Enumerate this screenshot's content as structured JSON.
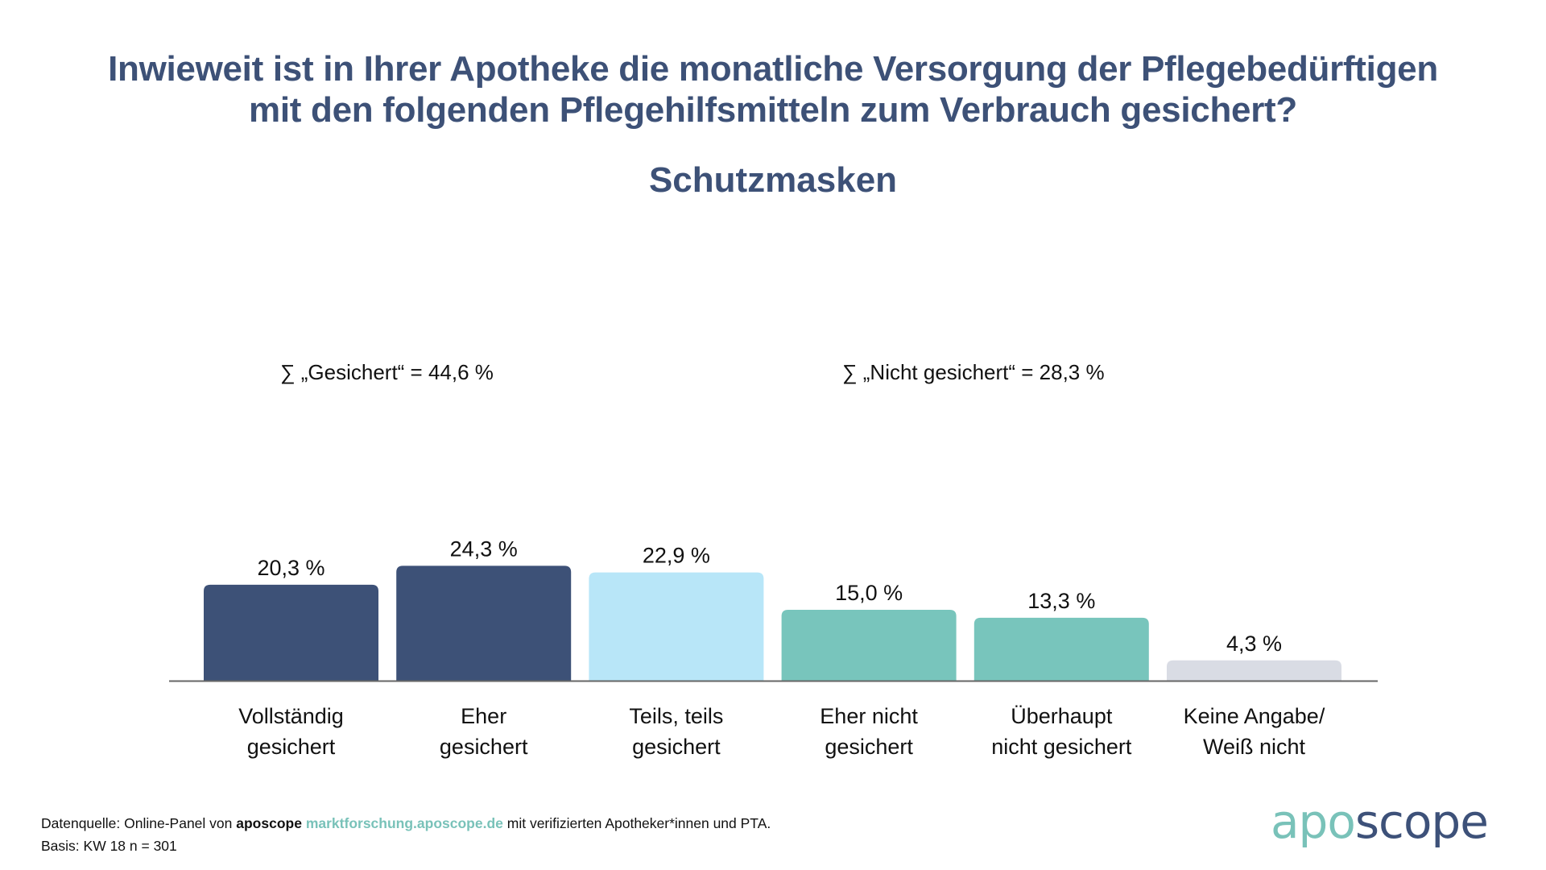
{
  "title": {
    "line1": "Inwieweit ist in Ihrer Apotheke die monatliche Versorgung der Pflegebedürftigen",
    "line2": "mit den folgenden Pflegehilfsmitteln zum Verbrauch gesichert?"
  },
  "subtitle": "Schutzmasken",
  "sums": [
    {
      "label": "∑ „Gesichert“ = 44,6 %"
    },
    {
      "label": "∑ „Nicht gesichert“ = 28,3 %"
    }
  ],
  "chart_data": {
    "type": "bar",
    "title": "Inwieweit ist in Ihrer Apotheke die monatliche Versorgung der Pflegebedürftigen mit den folgenden Pflegehilfsmitteln zum Verbrauch gesichert? – Schutzmasken",
    "xlabel": "",
    "ylabel": "",
    "unit": "%",
    "categories": [
      [
        "Vollständig",
        "gesichert"
      ],
      [
        "Eher",
        "gesichert"
      ],
      [
        "Teils, teils",
        "gesichert"
      ],
      [
        "Eher nicht",
        "gesichert"
      ],
      [
        "Überhaupt",
        "nicht gesichert"
      ],
      [
        "Keine Angabe/",
        "Weiß nicht"
      ]
    ],
    "values": [
      20.3,
      24.3,
      22.9,
      15.0,
      13.3,
      4.3
    ],
    "value_labels": [
      "20,3 %",
      "24,3 %",
      "22,9 %",
      "15,0 %",
      "13,3 %",
      "4,3 %"
    ],
    "colors": [
      "#3d5177",
      "#3d5177",
      "#b8e6f8",
      "#78c5bc",
      "#78c5bc",
      "#d9dce4"
    ],
    "annotations": [
      "∑ „Gesichert“ = 44,6 %",
      "∑ „Nicht gesichert“ = 28,3 %"
    ],
    "ylim": [
      0,
      25
    ],
    "grid": false,
    "legend": "none"
  },
  "footer": {
    "source_prefix": "Datenquelle: Online-Panel von ",
    "brand": "aposcope",
    "link": "marktforschung.aposcope.de",
    "source_suffix": " mit verifizierten Apotheker*innen und PTA.",
    "basis": "Basis: KW 18 n = 301"
  },
  "logo": {
    "part1": "apo",
    "part2": "scope",
    "color1": "#79c2b9",
    "color2": "#3d5179"
  }
}
